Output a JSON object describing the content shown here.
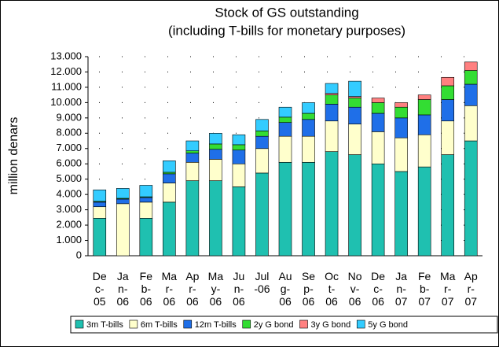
{
  "chart_data": {
    "type": "stacked_bar",
    "title": "Stock of GS outstanding",
    "subtitle": "(including T-bills for monetary purposes)",
    "y_label": "million denars",
    "categories": [
      "Dec-05",
      "Jan-06",
      "Feb-06",
      "Mar-06",
      "Apr-06",
      "May-06",
      "Jun-06",
      "Jul-06",
      "Aug-06",
      "Sep-06",
      "Oct-06",
      "Nov-06",
      "Dec-06",
      "Jan-07",
      "Feb-07",
      "Mar-07",
      "Apr-07"
    ],
    "series": [
      {
        "name": "3m T-bills",
        "color": "#1fc0b0",
        "values": [
          2450,
          0,
          2450,
          3500,
          4900,
          4900,
          4500,
          5400,
          6100,
          6100,
          6800,
          6600,
          6000,
          5500,
          5800,
          6600,
          7500
        ]
      },
      {
        "name": "6m T-bills",
        "color": "#ffffcc",
        "values": [
          750,
          3400,
          1050,
          1250,
          1200,
          1400,
          1500,
          1600,
          1700,
          1700,
          2000,
          2000,
          2100,
          2200,
          2100,
          2200,
          2300
        ]
      },
      {
        "name": "12m T-bills",
        "color": "#1f6fe8",
        "values": [
          300,
          300,
          300,
          600,
          600,
          650,
          900,
          800,
          900,
          1100,
          1100,
          1100,
          1200,
          1300,
          1300,
          1400,
          1400
        ]
      },
      {
        "name": "2y G bond",
        "color": "#33dd33",
        "values": [
          50,
          50,
          50,
          100,
          150,
          350,
          350,
          350,
          350,
          400,
          600,
          600,
          700,
          700,
          1000,
          900,
          900
        ]
      },
      {
        "name": "3y G bond",
        "color": "#ff8080",
        "values": [
          0,
          0,
          0,
          0,
          0,
          0,
          0,
          0,
          0,
          0,
          100,
          100,
          300,
          300,
          300,
          550,
          550
        ]
      },
      {
        "name": "5y G bond",
        "color": "#33ccff",
        "values": [
          750,
          650,
          750,
          750,
          650,
          700,
          650,
          750,
          650,
          700,
          650,
          1000,
          0,
          0,
          0,
          0,
          0
        ]
      }
    ],
    "ylim": [
      0,
      13000
    ],
    "yticks": [
      0,
      {
        "value": 1000,
        "label": "1.000"
      },
      {
        "value": 2000,
        "label": "2.000"
      },
      {
        "value": 3000,
        "label": "3.000"
      },
      {
        "value": 4000,
        "label": "4.000"
      },
      {
        "value": 5000,
        "label": "5.000"
      },
      {
        "value": 6000,
        "label": "6.000"
      },
      {
        "value": 7000,
        "label": "7.000"
      },
      {
        "value": 8000,
        "label": "8.000"
      },
      {
        "value": 9000,
        "label": "9.000"
      },
      {
        "value": 10000,
        "label": "10.000"
      },
      {
        "value": 11000,
        "label": "11.000"
      },
      {
        "value": 12000,
        "label": "12.000"
      },
      {
        "value": 13000,
        "label": "13.000"
      }
    ],
    "grid": true,
    "legend": "bottom"
  }
}
